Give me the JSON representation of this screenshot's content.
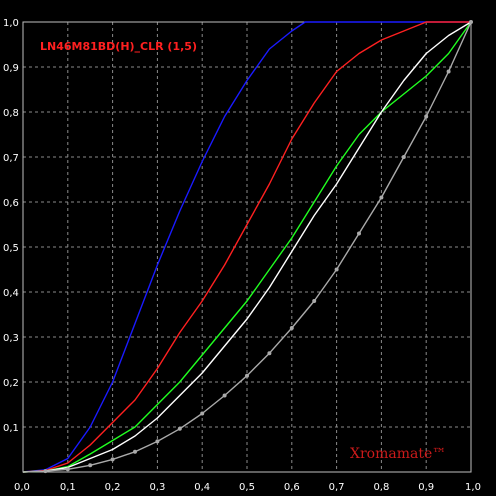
{
  "chart_data": {
    "type": "line",
    "title": "LN46M81BD(H)_CLR (1,5)",
    "watermark": "Xromamate™",
    "xlabel": "",
    "ylabel": "",
    "xlim": [
      0,
      1
    ],
    "ylim": [
      0,
      1
    ],
    "grid": true,
    "x_ticks": [
      "0,0",
      "0,1",
      "0,2",
      "0,3",
      "0,4",
      "0,5",
      "0,6",
      "0,7",
      "0,8",
      "0,9",
      "1,0"
    ],
    "y_ticks": [
      "0,1",
      "0,2",
      "0,3",
      "0,4",
      "0,5",
      "0,6",
      "0,7",
      "0,8",
      "0,9",
      "1,0"
    ],
    "colors": {
      "background": "#000000",
      "grid": "#8a8a8a",
      "title": "#ff2020",
      "watermark": "#cc1a1a",
      "axis_text": "#ffffff"
    },
    "series": [
      {
        "color": "#1a1aff",
        "x": [
          0,
          0.05,
          0.1,
          0.15,
          0.2,
          0.25,
          0.3,
          0.35,
          0.4,
          0.45,
          0.5,
          0.55,
          0.6,
          0.63,
          0.65,
          0.7,
          0.8,
          0.9,
          1.0
        ],
        "y": [
          0,
          0.005,
          0.03,
          0.1,
          0.2,
          0.33,
          0.46,
          0.58,
          0.69,
          0.79,
          0.87,
          0.94,
          0.98,
          1.0,
          1.0,
          1.0,
          1.0,
          1.0,
          1.0
        ]
      },
      {
        "color": "#ff2020",
        "x": [
          0,
          0.05,
          0.1,
          0.15,
          0.2,
          0.25,
          0.3,
          0.35,
          0.4,
          0.45,
          0.5,
          0.55,
          0.6,
          0.65,
          0.7,
          0.75,
          0.8,
          0.85,
          0.9,
          0.95,
          1.0
        ],
        "y": [
          0,
          0.003,
          0.02,
          0.06,
          0.11,
          0.16,
          0.23,
          0.31,
          0.38,
          0.46,
          0.55,
          0.64,
          0.74,
          0.82,
          0.89,
          0.93,
          0.96,
          0.98,
          1.0,
          1.0,
          1.0
        ]
      },
      {
        "color": "#20ff20",
        "x": [
          0,
          0.05,
          0.1,
          0.15,
          0.2,
          0.25,
          0.3,
          0.35,
          0.4,
          0.45,
          0.5,
          0.55,
          0.6,
          0.65,
          0.7,
          0.75,
          0.8,
          0.85,
          0.9,
          0.95,
          1.0
        ],
        "y": [
          0,
          0.002,
          0.012,
          0.04,
          0.07,
          0.1,
          0.15,
          0.2,
          0.26,
          0.32,
          0.38,
          0.45,
          0.52,
          0.6,
          0.68,
          0.75,
          0.8,
          0.84,
          0.88,
          0.93,
          1.0
        ]
      },
      {
        "color": "#ffffff",
        "x": [
          0,
          0.05,
          0.1,
          0.15,
          0.2,
          0.25,
          0.3,
          0.35,
          0.4,
          0.45,
          0.5,
          0.55,
          0.6,
          0.65,
          0.7,
          0.75,
          0.8,
          0.85,
          0.9,
          0.95,
          1.0
        ],
        "y": [
          0,
          0.002,
          0.01,
          0.03,
          0.05,
          0.08,
          0.12,
          0.17,
          0.22,
          0.28,
          0.34,
          0.41,
          0.49,
          0.57,
          0.64,
          0.72,
          0.8,
          0.87,
          0.93,
          0.97,
          1.0
        ]
      },
      {
        "color": "#aaaaaa",
        "markers": true,
        "x": [
          0,
          0.05,
          0.1,
          0.15,
          0.2,
          0.25,
          0.3,
          0.35,
          0.4,
          0.45,
          0.5,
          0.55,
          0.6,
          0.65,
          0.7,
          0.75,
          0.8,
          0.85,
          0.9,
          0.95,
          1.0
        ],
        "y": [
          0,
          0.002,
          0.006,
          0.015,
          0.028,
          0.045,
          0.068,
          0.096,
          0.13,
          0.17,
          0.214,
          0.264,
          0.32,
          0.38,
          0.45,
          0.53,
          0.61,
          0.7,
          0.79,
          0.89,
          1.0
        ]
      }
    ]
  }
}
